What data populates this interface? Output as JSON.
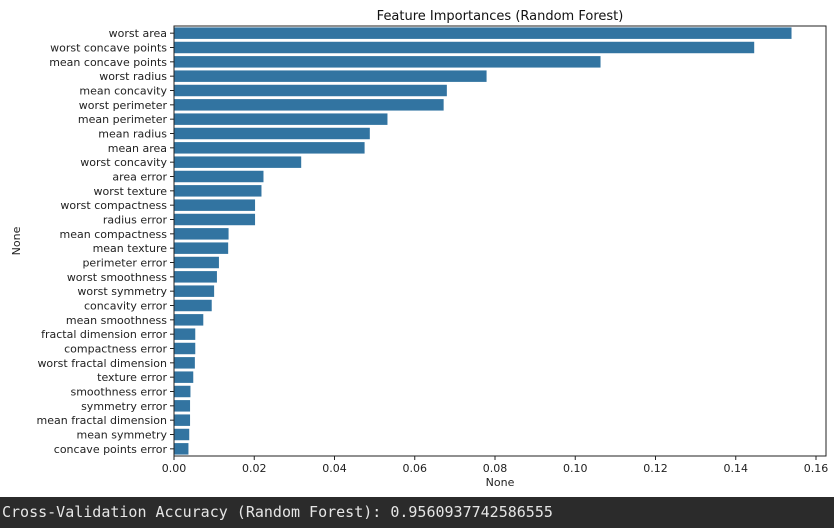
{
  "chart_data": {
    "type": "bar",
    "orientation": "horizontal",
    "title": "Feature Importances (Random Forest)",
    "xlabel": "None",
    "ylabel": "None",
    "xlim": [
      0,
      0.16
    ],
    "xticks": [
      0.0,
      0.02,
      0.04,
      0.06,
      0.08,
      0.1,
      0.12,
      0.14,
      0.16
    ],
    "xtick_labels": [
      "0.00",
      "0.02",
      "0.04",
      "0.06",
      "0.08",
      "0.10",
      "0.12",
      "0.14",
      "0.16"
    ],
    "grid": false,
    "bar_color": "#3274a1",
    "categories": [
      "worst area",
      "worst concave points",
      "mean concave points",
      "worst radius",
      "mean concavity",
      "worst perimeter",
      "mean perimeter",
      "mean radius",
      "mean area",
      "worst concavity",
      "area error",
      "worst texture",
      "worst compactness",
      "radius error",
      "mean compactness",
      "mean texture",
      "perimeter error",
      "worst smoothness",
      "worst symmetry",
      "concavity error",
      "mean smoothness",
      "fractal dimension error",
      "compactness error",
      "worst fractal dimension",
      "texture error",
      "smoothness error",
      "symmetry error",
      "mean fractal dimension",
      "mean symmetry",
      "concave points error"
    ],
    "values": [
      0.1539,
      0.1446,
      0.1063,
      0.0779,
      0.068,
      0.0672,
      0.0532,
      0.0488,
      0.0475,
      0.0317,
      0.0223,
      0.0218,
      0.0202,
      0.0202,
      0.0136,
      0.0135,
      0.0112,
      0.0107,
      0.01,
      0.0094,
      0.0073,
      0.0053,
      0.0053,
      0.0052,
      0.0048,
      0.0041,
      0.004,
      0.004,
      0.0038,
      0.0036
    ]
  },
  "console": {
    "output_line": "Cross-Validation Accuracy (Random Forest): 0.9560937742586555"
  }
}
